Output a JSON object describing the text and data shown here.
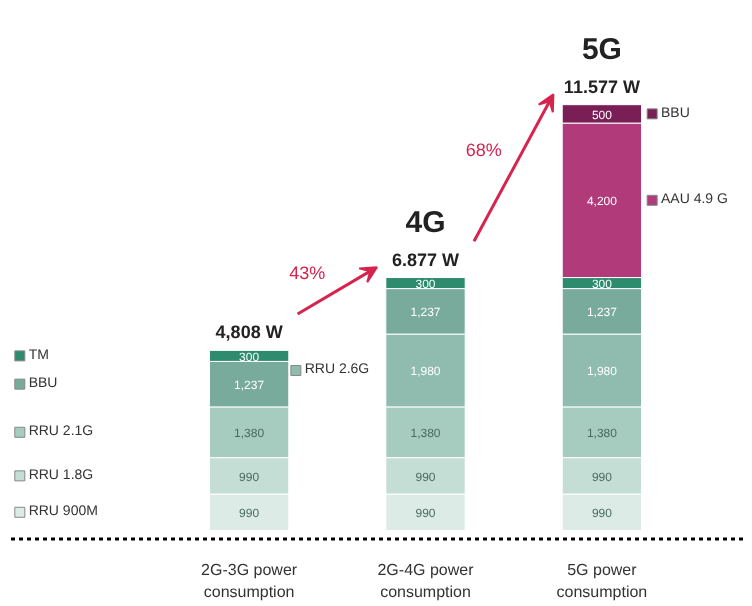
{
  "chart_data": {
    "type": "bar",
    "stacked": true,
    "legend": "left",
    "categories": [
      "2G-3G power consumption",
      "2G-4G power consumption",
      "5G power consumption"
    ],
    "series": [
      {
        "name": "RRU 900M",
        "color": "#dcebe6",
        "values": [
          990,
          990,
          990
        ],
        "value_labels": [
          "990",
          "990",
          "990"
        ]
      },
      {
        "name": "RRU 1.8G",
        "color": "#c4ddd5",
        "values": [
          990,
          990,
          990
        ],
        "value_labels": [
          "990",
          "990",
          "990"
        ]
      },
      {
        "name": "RRU 2.1G",
        "color": "#a6cbbf",
        "values": [
          1380,
          1380,
          1380
        ],
        "value_labels": [
          "1,380",
          "1,380",
          "1,380"
        ]
      },
      {
        "name": "RRU 2.6G",
        "color": "#8fbcae",
        "values": [
          null,
          1980,
          1980
        ],
        "value_labels": [
          null,
          "1,980",
          "1,980"
        ]
      },
      {
        "name": "BBU",
        "color": "#78ab9b",
        "values": [
          1237,
          1237,
          1237
        ],
        "value_labels": [
          "1,237",
          "1,237",
          "1,237"
        ]
      },
      {
        "name": "TM",
        "color": "#2e8b6e",
        "values": [
          300,
          300,
          300
        ],
        "value_labels": [
          "300",
          "300",
          "300"
        ]
      },
      {
        "name": "AAU 4.9 G",
        "color": "#b03a7a",
        "values": [
          null,
          null,
          4200
        ],
        "value_labels": [
          null,
          null,
          "4,200"
        ]
      },
      {
        "name": "BBU",
        "color": "#7a1f55",
        "values": [
          null,
          null,
          500
        ],
        "value_labels": [
          null,
          null,
          "500"
        ]
      }
    ],
    "annotations": [
      "4,808 W",
      "6.877 W",
      "11.577 W",
      "4G",
      "5G",
      "43%",
      "68%"
    ]
  }
}
